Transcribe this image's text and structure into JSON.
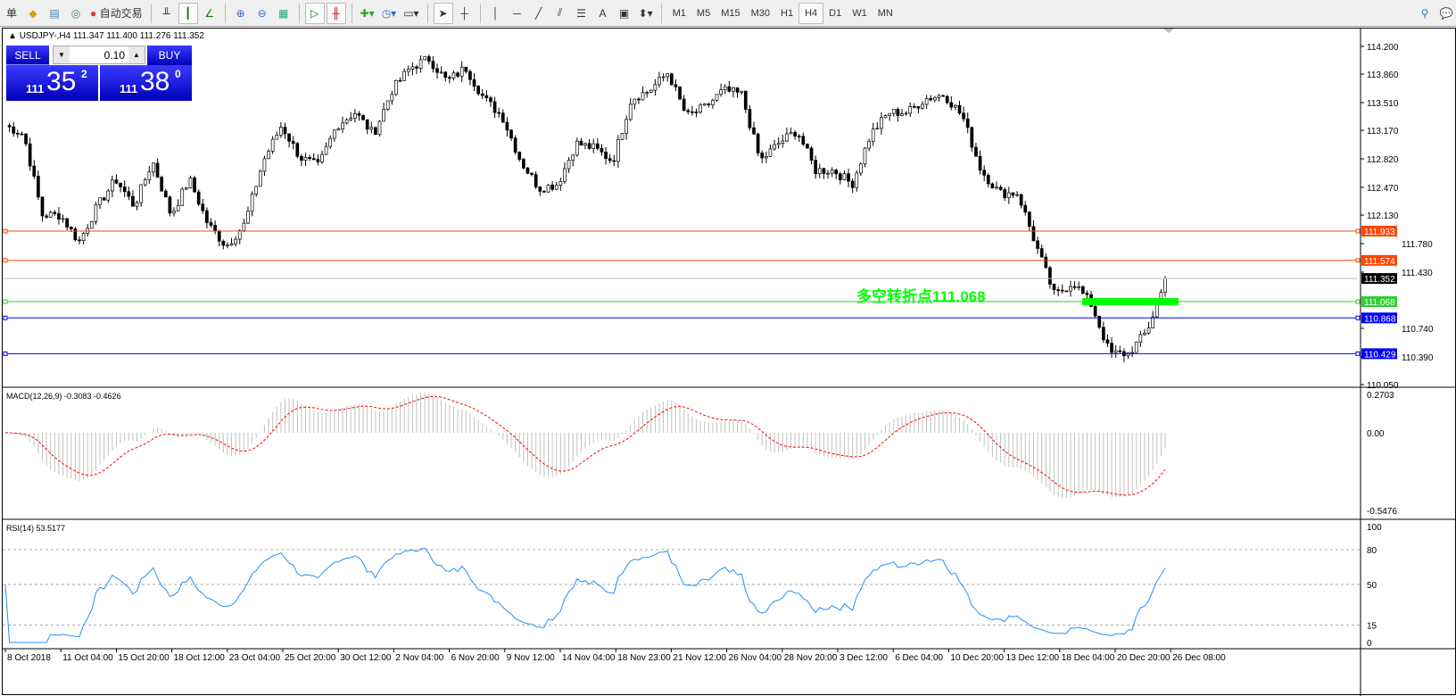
{
  "toolbar": {
    "menu_fragment": "单",
    "auto_trading": "自动交易",
    "timeframes": [
      "M1",
      "M5",
      "M15",
      "M30",
      "H1",
      "H4",
      "D1",
      "W1",
      "MN"
    ],
    "active_timeframe": "H4",
    "text_tool": "A"
  },
  "chart": {
    "title": "USDJPY-,H4  111.347 111.400 111.276 111.352",
    "symbol": "USDJPY-",
    "period": "H4",
    "annotation": "多空转折点111.068",
    "annotation_color": "#00ff00",
    "price_axis": [
      "114.200",
      "113.860",
      "113.510",
      "113.170",
      "112.820",
      "112.470",
      "112.130",
      "111.780",
      "111.430",
      "110.740",
      "110.390",
      "110.050"
    ],
    "price_range": [
      110.05,
      114.2
    ],
    "levels": [
      {
        "label": "111.933",
        "value": 111.933,
        "color": "#ff4500"
      },
      {
        "label": "111.574",
        "value": 111.574,
        "color": "#ff4500"
      },
      {
        "label": "111.352",
        "value": 111.352,
        "color": "#000000"
      },
      {
        "label": "111.068",
        "value": 111.068,
        "color": "#33cc33"
      },
      {
        "label": "110.868",
        "value": 110.868,
        "color": "#0000ff"
      },
      {
        "label": "110.429",
        "value": 110.429,
        "color": "#0000ff"
      }
    ],
    "close_path": [
      113.23,
      113.12,
      112.13,
      112.13,
      111.8,
      112.24,
      112.57,
      112.24,
      112.79,
      112.13,
      112.57,
      112.02,
      111.75,
      112.02,
      112.79,
      113.23,
      112.84,
      112.73,
      113.23,
      113.39,
      113.12,
      113.66,
      113.94,
      114.05,
      113.77,
      113.94,
      113.56,
      113.34,
      112.79,
      112.46,
      112.51,
      113.01,
      112.95,
      112.79,
      113.56,
      113.66,
      113.88,
      113.34,
      113.45,
      113.66,
      113.61,
      112.79,
      113.01,
      113.17,
      112.68,
      112.68,
      112.51,
      113.12,
      113.39,
      113.39,
      113.56,
      113.61,
      113.34,
      112.68,
      112.4,
      112.4,
      111.75,
      111.14,
      111.31,
      111.03,
      110.43,
      110.43,
      110.7,
      111.31
    ]
  },
  "trade_panel": {
    "sell_label": "SELL",
    "buy_label": "BUY",
    "lot": "0.10",
    "sell_big": "111",
    "sell_main": "35",
    "sell_sup": "2",
    "buy_big": "111",
    "buy_main": "38",
    "buy_sup": "0"
  },
  "macd": {
    "label": "MACD(12,26,9) -0.3083 -0.4626",
    "axis": [
      "0.2703",
      "0.00",
      "-0.5476"
    ],
    "range": [
      -0.5476,
      0.2703
    ],
    "signal_color": "#ff0000",
    "hist_color": "#c0c0c0"
  },
  "rsi": {
    "label": "RSI(14) 53.5177",
    "axis": [
      "100",
      "80",
      "50",
      "15",
      "0"
    ],
    "levels": [
      80,
      50,
      15
    ],
    "color": "#1e90ff"
  },
  "time_axis": [
    "8 Oct 2018",
    "11 Oct 04:00",
    "15 Oct 20:00",
    "18 Oct 12:00",
    "23 Oct 04:00",
    "25 Oct 20:00",
    "30 Oct 12:00",
    "2 Nov 04:00",
    "6 Nov 20:00",
    "9 Nov 12:00",
    "14 Nov 04:00",
    "18 Nov 23:00",
    "21 Nov 12:00",
    "26 Nov 04:00",
    "28 Nov 20:00",
    "3 Dec 12:00",
    "6 Dec 04:00",
    "10 Dec 20:00",
    "13 Dec 12:00",
    "18 Dec 04:00",
    "20 Dec 20:00",
    "26 Dec 08:00"
  ]
}
